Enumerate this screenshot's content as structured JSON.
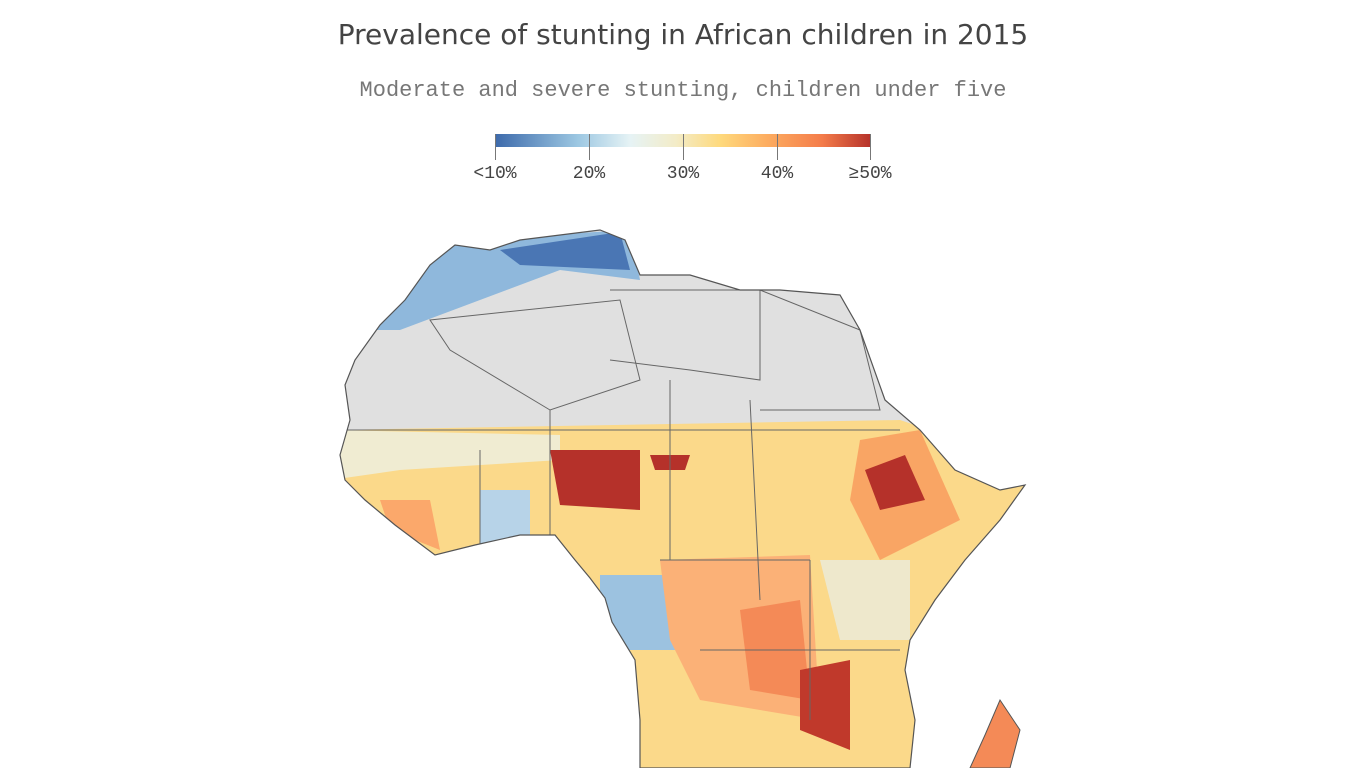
{
  "title": "Prevalence of stunting in African children in 2015",
  "subtitle": "Moderate and severe stunting, children under five",
  "legend": {
    "ticks": [
      "<10%",
      "20%",
      "30%",
      "40%",
      "≥50%"
    ],
    "colors": [
      "#3d6aab",
      "#9cc7e2",
      "#e6f3f5",
      "#fed97c",
      "#fdae61",
      "#b5312a"
    ],
    "no_data_color": "#e0e0e0"
  }
}
